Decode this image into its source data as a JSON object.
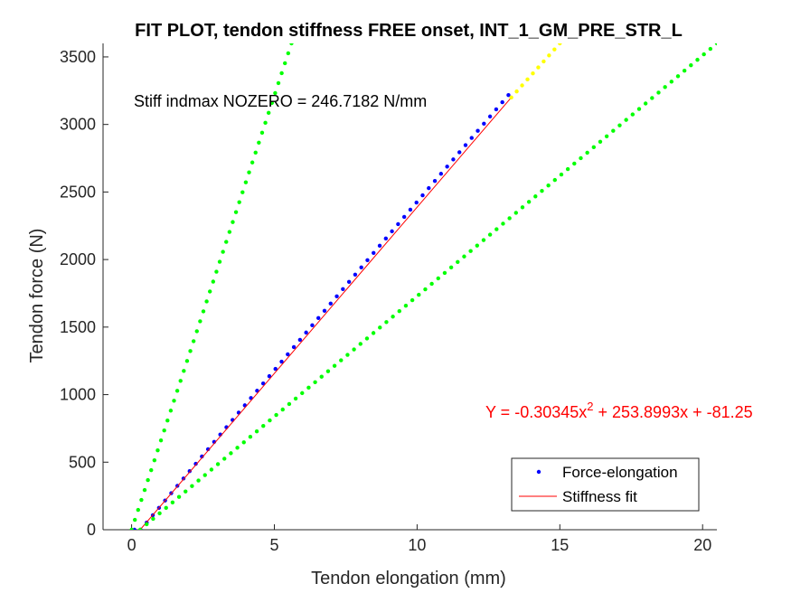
{
  "chart_data": {
    "type": "scatter",
    "title": "FIT PLOT, tendon stiffness FREE onset, INT_1_GM_PRE_STR_L",
    "xlabel": "Tendon elongation (mm)",
    "ylabel": "Tendon force (N)",
    "xlim": [
      -1,
      20.5
    ],
    "ylim": [
      0,
      3600
    ],
    "xticks": [
      0,
      5,
      10,
      15,
      20
    ],
    "yticks": [
      0,
      500,
      1000,
      1500,
      2000,
      2500,
      3000,
      3500
    ],
    "grid": false,
    "legend_position": "bottom-right",
    "annotations": {
      "stiffness_text": "Stiff indmax NOZERO = 246.7182 N/mm",
      "fit_text": "Y = -0.30345x",
      "fit_exponent": "2",
      "fit_text_rest": " + 253.8993x + -81.25"
    },
    "series": [
      {
        "name": "Force-elongation",
        "color": "#0000ff",
        "marker": "dot",
        "x0": 0.1,
        "x1": 13.2,
        "count": 62,
        "poly": [
          -81.25,
          253.8993,
          -0.30345
        ]
      },
      {
        "name": "Stiffness fit",
        "color": "#ff0000",
        "line": true,
        "x": [
          0.3,
          13.3
        ],
        "y": [
          0,
          3200
        ]
      },
      {
        "color": "#00ff00",
        "marker": "dot",
        "x0": 0,
        "x1": 5.6,
        "count": 50,
        "points_xy": [
          [
            0,
            0
          ],
          [
            5.6,
            3600
          ]
        ]
      },
      {
        "color": "#00ff00",
        "marker": "dot",
        "x0": 0.3,
        "x1": 20.5,
        "count": 90,
        "points_xy": [
          [
            0.3,
            0
          ],
          [
            20.5,
            3600
          ]
        ]
      },
      {
        "color": "#ffff00",
        "marker": "dot",
        "x0": 13.3,
        "x1": 15.0,
        "count": 10,
        "points_xy": [
          [
            13.3,
            3200
          ],
          [
            15.0,
            3600
          ]
        ]
      }
    ],
    "legend": [
      {
        "label": "Force-elongation",
        "kind": "dot",
        "color": "#0000ff"
      },
      {
        "label": "Stiffness fit",
        "kind": "line",
        "color": "#ff0000"
      }
    ]
  }
}
